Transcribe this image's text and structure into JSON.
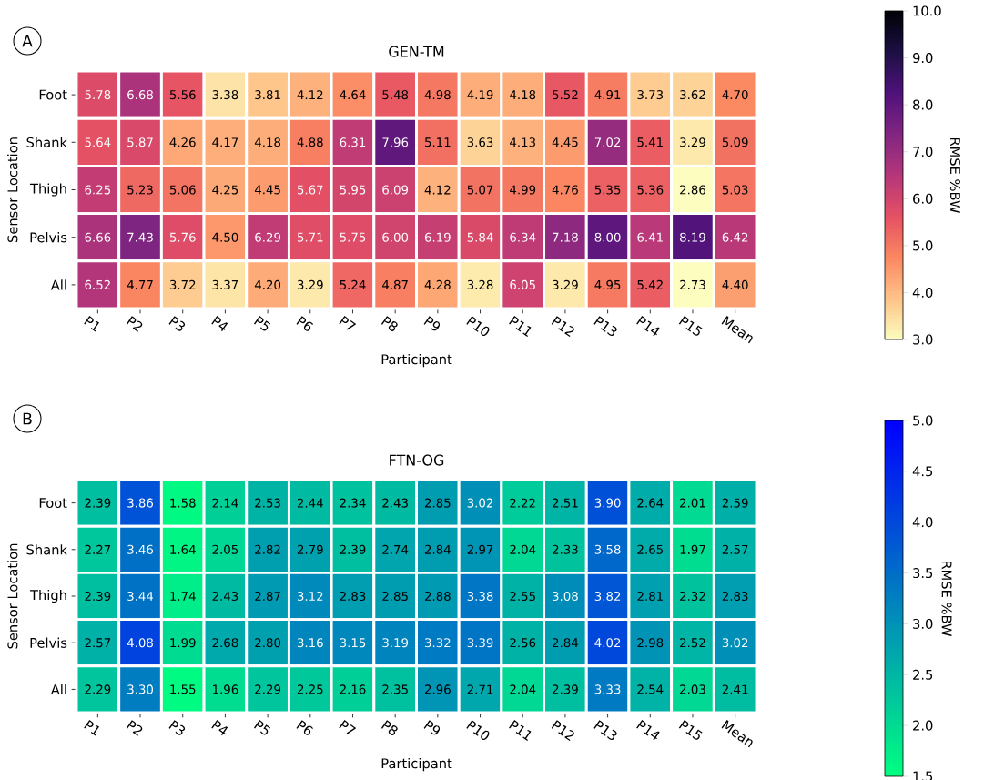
{
  "chart_data": [
    {
      "type": "heatmap",
      "title": "GEN-TM",
      "xlabel": "Participant",
      "ylabel": "Sensor Location",
      "clabel": "RMSE %BW",
      "annotations": [
        "A"
      ],
      "data_labels": true,
      "categories": [
        "P1",
        "P2",
        "P3",
        "P4",
        "P5",
        "P6",
        "P7",
        "P8",
        "P9",
        "P10",
        "P11",
        "P12",
        "P13",
        "P14",
        "P15",
        "Mean"
      ],
      "y_categories": [
        "Foot",
        "Shank",
        "Thigh",
        "Pelvis",
        "All"
      ],
      "cells": [
        [
          5.78,
          6.68,
          5.56,
          3.38,
          3.81,
          4.12,
          4.64,
          5.48,
          4.98,
          4.19,
          4.18,
          5.52,
          4.91,
          3.73,
          3.62,
          4.7
        ],
        [
          5.64,
          5.87,
          4.26,
          4.17,
          4.18,
          4.88,
          6.31,
          7.96,
          5.11,
          3.63,
          4.13,
          4.45,
          7.02,
          5.41,
          3.29,
          5.09
        ],
        [
          6.25,
          5.23,
          5.06,
          4.25,
          4.45,
          5.67,
          5.95,
          6.09,
          4.12,
          5.07,
          4.99,
          4.76,
          5.35,
          5.36,
          2.86,
          5.03
        ],
        [
          6.66,
          7.43,
          5.76,
          4.5,
          6.29,
          5.71,
          5.75,
          6.0,
          6.19,
          5.84,
          6.34,
          7.18,
          8.0,
          6.41,
          8.19,
          6.42
        ],
        [
          6.52,
          4.77,
          3.72,
          3.37,
          4.2,
          3.29,
          5.24,
          4.87,
          4.28,
          3.28,
          6.05,
          3.29,
          4.95,
          5.42,
          2.73,
          4.4
        ]
      ],
      "cell_labels": [
        [
          "5.78",
          "6.68",
          "5.56",
          "3.38",
          "3.81",
          "4.12",
          "4.64",
          "5.48",
          "4.98",
          "4.19",
          "4.18",
          "5.52",
          "4.91",
          "3.73",
          "3.62",
          "4.70"
        ],
        [
          "5.64",
          "5.87",
          "4.26",
          "4.17",
          "4.18",
          "4.88",
          "6.31",
          "7.96",
          "5.11",
          "3.63",
          "4.13",
          "4.45",
          "7.02",
          "5.41",
          "3.29",
          "5.09"
        ],
        [
          "6.25",
          "5.23",
          "5.06",
          "4.25",
          "4.45",
          "5.67",
          "5.95",
          "6.09",
          "4.12",
          "5.07",
          "4.99",
          "4.76",
          "5.35",
          "5.36",
          "2.86",
          "5.03"
        ],
        [
          "6.66",
          "7.43",
          "5.76",
          "4.50",
          "6.29",
          "5.71",
          "5.75",
          "6.00",
          "6.19",
          "5.84",
          "6.34",
          "7.18",
          "8.00",
          "6.41",
          "8.19",
          "6.42"
        ],
        [
          "6.52",
          "4.77",
          "3.72",
          "3.37",
          "4.20",
          "3.29",
          "5.24",
          "4.87",
          "4.28",
          "3.28",
          "6.05",
          "3.29",
          "4.95",
          "5.42",
          "2.73",
          "4.40"
        ]
      ],
      "clim": [
        3,
        10
      ],
      "cticks": [
        {
          "value": 3,
          "label": "3.0"
        },
        {
          "value": 4,
          "label": "4.0"
        },
        {
          "value": 5,
          "label": "5.0"
        },
        {
          "value": 6,
          "label": "6.0"
        },
        {
          "value": 7,
          "label": "7.0"
        },
        {
          "value": 8,
          "label": "8.0"
        },
        {
          "value": 9,
          "label": "9.0"
        },
        {
          "value": 10,
          "label": "10.0"
        }
      ]
    },
    {
      "type": "heatmap",
      "title": "FTN-OG",
      "xlabel": "Participant",
      "ylabel": "Sensor Location",
      "clabel": "RMSE %BW",
      "annotations": [
        "B"
      ],
      "data_labels": true,
      "categories": [
        "P1",
        "P2",
        "P3",
        "P4",
        "P5",
        "P6",
        "P7",
        "P8",
        "P9",
        "P10",
        "P11",
        "P12",
        "P13",
        "P14",
        "P15",
        "Mean"
      ],
      "y_categories": [
        "Foot",
        "Shank",
        "Thigh",
        "Pelvis",
        "All"
      ],
      "cells": [
        [
          2.39,
          3.86,
          1.58,
          2.14,
          2.53,
          2.44,
          2.34,
          2.43,
          2.85,
          3.02,
          2.22,
          2.51,
          3.9,
          2.64,
          2.01,
          2.59
        ],
        [
          2.27,
          3.46,
          1.64,
          2.05,
          2.82,
          2.79,
          2.39,
          2.74,
          2.84,
          2.97,
          2.04,
          2.33,
          3.58,
          2.65,
          1.97,
          2.57
        ],
        [
          2.39,
          3.44,
          1.74,
          2.43,
          2.87,
          3.12,
          2.83,
          2.85,
          2.88,
          3.38,
          2.55,
          3.08,
          3.82,
          2.81,
          2.32,
          2.83
        ],
        [
          2.57,
          4.08,
          1.99,
          2.68,
          2.8,
          3.16,
          3.15,
          3.19,
          3.32,
          3.39,
          2.56,
          2.84,
          4.02,
          2.98,
          2.52,
          3.02
        ],
        [
          2.29,
          3.3,
          1.55,
          1.96,
          2.29,
          2.25,
          2.16,
          2.35,
          2.96,
          2.71,
          2.04,
          2.39,
          3.33,
          2.54,
          2.03,
          2.41
        ]
      ],
      "cell_labels": [
        [
          "2.39",
          "3.86",
          "1.58",
          "2.14",
          "2.53",
          "2.44",
          "2.34",
          "2.43",
          "2.85",
          "3.02",
          "2.22",
          "2.51",
          "3.90",
          "2.64",
          "2.01",
          "2.59"
        ],
        [
          "2.27",
          "3.46",
          "1.64",
          "2.05",
          "2.82",
          "2.79",
          "2.39",
          "2.74",
          "2.84",
          "2.97",
          "2.04",
          "2.33",
          "3.58",
          "2.65",
          "1.97",
          "2.57"
        ],
        [
          "2.39",
          "3.44",
          "1.74",
          "2.43",
          "2.87",
          "3.12",
          "2.83",
          "2.85",
          "2.88",
          "3.38",
          "2.55",
          "3.08",
          "3.82",
          "2.81",
          "2.32",
          "2.83"
        ],
        [
          "2.57",
          "4.08",
          "1.99",
          "2.68",
          "2.80",
          "3.16",
          "3.15",
          "3.19",
          "3.32",
          "3.39",
          "2.56",
          "2.84",
          "4.02",
          "2.98",
          "2.52",
          "3.02"
        ],
        [
          "2.29",
          "3.30",
          "1.55",
          "1.96",
          "2.29",
          "2.25",
          "2.16",
          "2.35",
          "2.96",
          "2.71",
          "2.04",
          "2.39",
          "3.33",
          "2.54",
          "2.03",
          "2.41"
        ]
      ],
      "clim": [
        1.5,
        5
      ],
      "cticks": [
        {
          "value": 1.5,
          "label": "1.5"
        },
        {
          "value": 2,
          "label": "2.0"
        },
        {
          "value": 2.5,
          "label": "2.5"
        },
        {
          "value": 3,
          "label": "3.0"
        },
        {
          "value": 3.5,
          "label": "3.5"
        },
        {
          "value": 4,
          "label": "4.0"
        },
        {
          "value": 4.5,
          "label": "4.5"
        },
        {
          "value": 5,
          "label": "5.0"
        }
      ]
    }
  ]
}
